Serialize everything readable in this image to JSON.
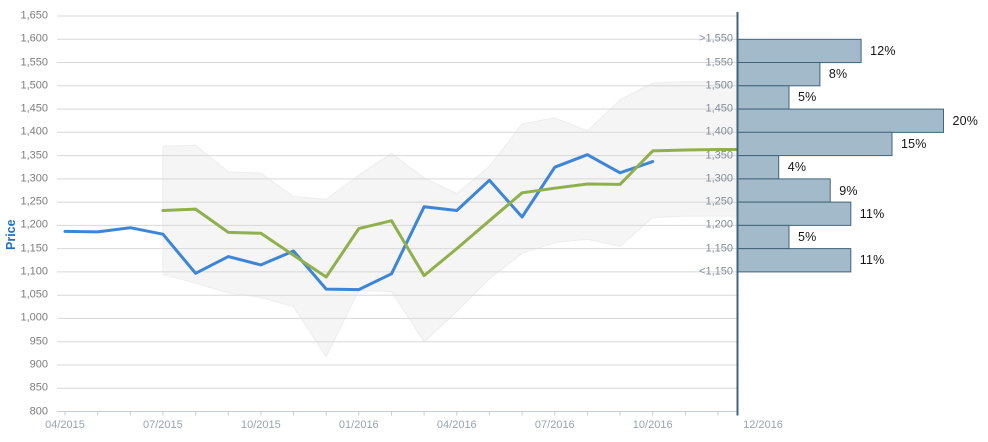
{
  "colors": {
    "blue_line": "#3d85d8",
    "green_line": "#8fb04d",
    "band_fill": "#f5f5f5",
    "band_edge": "#ededed",
    "bar_fill": "#a2bac9",
    "bar_border": "#41647c",
    "grid": "#d8d8d8",
    "axis": "#c6ced5"
  },
  "months": [
    "04/2015",
    "05/2015",
    "06/2015",
    "07/2015",
    "08/2015",
    "09/2015",
    "10/2015",
    "11/2015",
    "12/2015",
    "01/2016",
    "02/2016",
    "03/2016",
    "04/2016",
    "05/2016",
    "06/2016",
    "07/2016",
    "08/2016",
    "09/2016",
    "10/2016",
    "11/2016",
    "12/2016"
  ],
  "y_axis": {
    "title": "Price",
    "tick_labels": [
      "1,650",
      "1,600",
      "1,550",
      "1,500",
      "1,450",
      "1,400",
      "1,350",
      "1,300",
      "1,250",
      "1,200",
      "1,150",
      "1,100",
      "1,050",
      "1,000",
      "950",
      "900",
      "850",
      "800"
    ]
  },
  "x_axis": {
    "tick_labels": [
      "04/2015",
      "07/2015",
      "10/2015",
      "01/2016",
      "04/2016",
      "07/2016",
      "10/2016"
    ],
    "forecast_label": "12/2016"
  },
  "chart_data": [
    {
      "type": "line",
      "ylabel": "Price",
      "ylim": [
        800,
        1650
      ],
      "grid": true,
      "series": [
        {
          "name": "price-history-line-blue",
          "color": "#3d85d8",
          "points": [
            {
              "month": "04/2015",
              "value": 1187
            },
            {
              "month": "05/2015",
              "value": 1186
            },
            {
              "month": "06/2015",
              "value": 1195
            },
            {
              "month": "07/2015",
              "value": 1181
            },
            {
              "month": "08/2015",
              "value": 1097
            },
            {
              "month": "09/2015",
              "value": 1133
            },
            {
              "month": "10/2015",
              "value": 1115
            },
            {
              "month": "11/2015",
              "value": 1145
            },
            {
              "month": "12/2015",
              "value": 1063
            },
            {
              "month": "01/2016",
              "value": 1062
            },
            {
              "month": "02/2016",
              "value": 1096
            },
            {
              "month": "03/2016",
              "value": 1240
            },
            {
              "month": "04/2016",
              "value": 1232
            },
            {
              "month": "05/2016",
              "value": 1297
            },
            {
              "month": "06/2016",
              "value": 1218
            },
            {
              "month": "07/2016",
              "value": 1325
            },
            {
              "month": "08/2016",
              "value": 1352
            },
            {
              "month": "09/2016",
              "value": 1313
            },
            {
              "month": "10/2016",
              "value": 1337
            }
          ]
        },
        {
          "name": "price-forecast-line-green",
          "color": "#8fb04d",
          "extends_to_edge": true,
          "points": [
            {
              "month": "07/2015",
              "value": 1232
            },
            {
              "month": "08/2015",
              "value": 1235
            },
            {
              "month": "09/2015",
              "value": 1185
            },
            {
              "month": "10/2015",
              "value": 1183
            },
            {
              "month": "11/2015",
              "value": 1136
            },
            {
              "month": "12/2015",
              "value": 1089
            },
            {
              "month": "01/2016",
              "value": 1193
            },
            {
              "month": "02/2016",
              "value": 1210
            },
            {
              "month": "03/2016",
              "value": 1092
            },
            {
              "month": "04/2016",
              "value": 1150
            },
            {
              "month": "05/2016",
              "value": 1210
            },
            {
              "month": "06/2016",
              "value": 1270
            },
            {
              "month": "07/2016",
              "value": 1280
            },
            {
              "month": "08/2016",
              "value": 1289
            },
            {
              "month": "09/2016",
              "value": 1288
            },
            {
              "month": "10/2016",
              "value": 1360
            },
            {
              "month": "11/2016",
              "value": 1362
            },
            {
              "month": "12/2016",
              "value": 1363
            }
          ]
        }
      ],
      "band": {
        "name": "forecast-uncertainty-band",
        "extends_to_edge": true,
        "points": [
          {
            "month": "07/2015",
            "high": 1370,
            "low": 1095
          },
          {
            "month": "08/2015",
            "high": 1372,
            "low": 1076
          },
          {
            "month": "09/2015",
            "high": 1315,
            "low": 1055
          },
          {
            "month": "10/2015",
            "high": 1312,
            "low": 1045
          },
          {
            "month": "11/2015",
            "high": 1262,
            "low": 1025
          },
          {
            "month": "12/2015",
            "high": 1256,
            "low": 918
          },
          {
            "month": "01/2016",
            "high": 1308,
            "low": 1060
          },
          {
            "month": "02/2016",
            "high": 1355,
            "low": 1058
          },
          {
            "month": "03/2016",
            "high": 1302,
            "low": 950
          },
          {
            "month": "04/2016",
            "high": 1268,
            "low": 1015
          },
          {
            "month": "05/2016",
            "high": 1327,
            "low": 1085
          },
          {
            "month": "06/2016",
            "high": 1418,
            "low": 1140
          },
          {
            "month": "07/2016",
            "high": 1431,
            "low": 1163
          },
          {
            "month": "08/2016",
            "high": 1403,
            "low": 1170
          },
          {
            "month": "09/2016",
            "high": 1470,
            "low": 1155
          },
          {
            "month": "10/2016",
            "high": 1506,
            "low": 1217
          },
          {
            "month": "11/2016",
            "high": 1509,
            "low": 1220
          },
          {
            "month": "12/2016",
            "high": 1509,
            "low": 1220
          }
        ]
      }
    },
    {
      "type": "bar",
      "name": "price-distribution-12-2016",
      "orientation": "horizontal",
      "x_label": "12/2016",
      "bin_edge_labels": [
        ">1,550",
        "1,550",
        "1,500",
        "1,450",
        "1,400",
        "1,350",
        "1,300",
        "1,250",
        "1,200",
        "1,150",
        "<1,150"
      ],
      "bars": [
        {
          "pct": 12,
          "label": "12%"
        },
        {
          "pct": 8,
          "label": "8%"
        },
        {
          "pct": 5,
          "label": "5%"
        },
        {
          "pct": 20,
          "label": "20%"
        },
        {
          "pct": 15,
          "label": "15%"
        },
        {
          "pct": 4,
          "label": "4%"
        },
        {
          "pct": 9,
          "label": "9%"
        },
        {
          "pct": 11,
          "label": "11%"
        },
        {
          "pct": 5,
          "label": "5%"
        },
        {
          "pct": 11,
          "label": "11%"
        }
      ]
    }
  ]
}
